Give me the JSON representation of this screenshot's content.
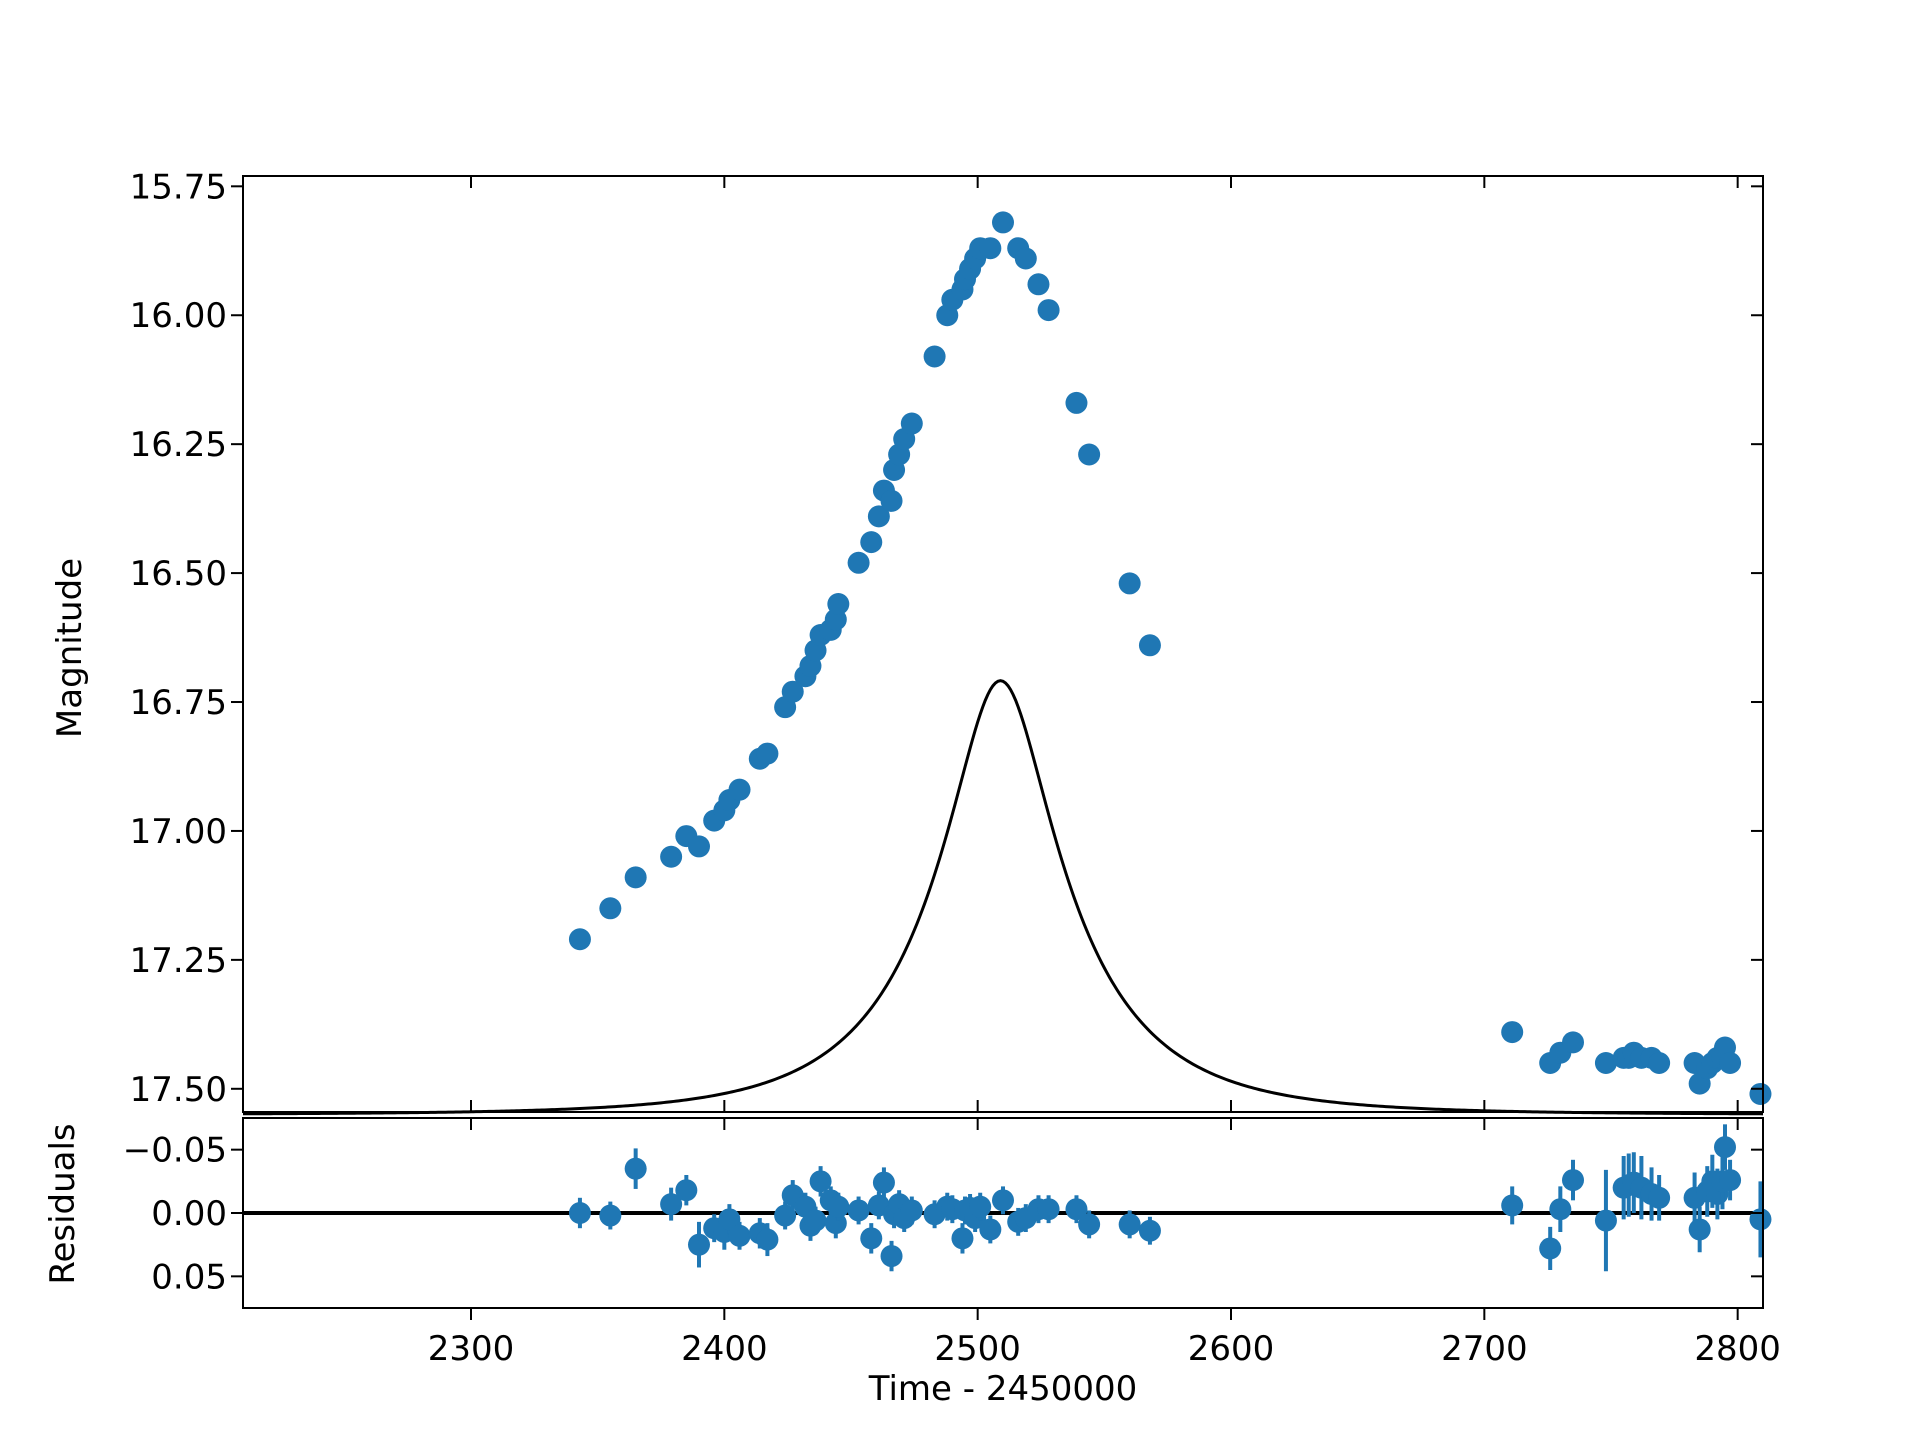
{
  "colors": {
    "points": "#1f77b4",
    "model": "#000000",
    "axes": "#000000",
    "background": "#ffffff"
  },
  "chart_data": [
    {
      "type": "scatter",
      "panel": "main",
      "title": "",
      "xlabel": "",
      "ylabel": "Magnitude",
      "xlim": [
        2210,
        2810
      ],
      "ylim": [
        17.545,
        15.73
      ],
      "y_inverted": true,
      "x_ticks": [
        2300,
        2400,
        2500,
        2600,
        2700,
        2800
      ],
      "y_ticks": [
        "15.75",
        "16.00",
        "16.25",
        "16.50",
        "16.75",
        "17.00",
        "17.25",
        "17.50"
      ],
      "x_tick_labels_shown": false,
      "grid": false,
      "model_curve": {
        "type": "point-lens microlensing fit",
        "t0": 2509,
        "tE": 60,
        "u0": 0.31,
        "baseline_mag": 17.55,
        "blending_fraction": 0.5
      },
      "series": [
        {
          "x": [
            2343,
            2355,
            2365,
            2379,
            2385,
            2390,
            2396,
            2400,
            2402,
            2406,
            2414,
            2417,
            2424,
            2427,
            2432,
            2434,
            2436,
            2438,
            2442,
            2444,
            2445,
            2453,
            2458,
            2461,
            2463,
            2466,
            2467,
            2469,
            2471,
            2474,
            2483,
            2488,
            2490,
            2494,
            2495,
            2497,
            2499,
            2501,
            2505,
            2510,
            2516,
            2519,
            2524,
            2528,
            2539,
            2544,
            2560,
            2568,
            2711,
            2726,
            2730,
            2735,
            2748,
            2755,
            2757,
            2759,
            2762,
            2766,
            2769,
            2783,
            2785,
            2788,
            2790,
            2792,
            2794,
            2795,
            2797,
            2809
          ],
          "y": [
            17.21,
            17.15,
            17.09,
            17.05,
            17.01,
            17.03,
            16.98,
            16.96,
            16.94,
            16.92,
            16.86,
            16.85,
            16.76,
            16.73,
            16.7,
            16.68,
            16.65,
            16.62,
            16.61,
            16.59,
            16.56,
            16.48,
            16.44,
            16.39,
            16.34,
            16.36,
            16.3,
            16.27,
            16.24,
            16.21,
            16.08,
            16.0,
            15.97,
            15.95,
            15.93,
            15.91,
            15.89,
            15.87,
            15.87,
            15.82,
            15.87,
            15.89,
            15.94,
            15.99,
            16.17,
            16.27,
            16.52,
            16.64,
            17.39,
            17.45,
            17.43,
            17.41,
            17.45,
            17.44,
            17.44,
            17.43,
            17.44,
            17.44,
            17.45,
            17.45,
            17.49,
            17.46,
            17.45,
            17.44,
            17.44,
            17.42,
            17.45,
            17.51
          ]
        }
      ]
    },
    {
      "type": "scatter",
      "panel": "residuals",
      "xlabel": "Time - 2450000",
      "ylabel": "Residuals",
      "xlim": [
        2210,
        2810
      ],
      "ylim": [
        0.075,
        -0.075
      ],
      "y_inverted": true,
      "x_ticks": [
        "2300",
        "2400",
        "2500",
        "2600",
        "2700",
        "2800"
      ],
      "y_ticks": [
        "−0.05",
        "0.00",
        "0.05"
      ],
      "zero_line": 0,
      "grid": false,
      "series": [
        {
          "x": [
            2343,
            2355,
            2365,
            2379,
            2385,
            2390,
            2396,
            2400,
            2402,
            2406,
            2414,
            2417,
            2424,
            2427,
            2432,
            2434,
            2436,
            2438,
            2442,
            2444,
            2445,
            2453,
            2458,
            2461,
            2463,
            2466,
            2467,
            2469,
            2471,
            2474,
            2483,
            2488,
            2490,
            2494,
            2495,
            2497,
            2499,
            2501,
            2505,
            2510,
            2516,
            2519,
            2524,
            2528,
            2539,
            2544,
            2560,
            2568,
            2711,
            2726,
            2730,
            2735,
            2748,
            2755,
            2757,
            2759,
            2762,
            2766,
            2769,
            2783,
            2785,
            2788,
            2790,
            2792,
            2794,
            2795,
            2797,
            2809
          ],
          "y": [
            0.0,
            0.002,
            -0.035,
            -0.007,
            -0.018,
            0.025,
            0.012,
            0.015,
            0.005,
            0.018,
            0.016,
            0.021,
            0.002,
            -0.014,
            -0.005,
            0.01,
            0.006,
            -0.025,
            -0.01,
            0.008,
            -0.005,
            -0.002,
            0.02,
            -0.006,
            -0.024,
            0.034,
            0.001,
            -0.007,
            0.004,
            -0.002,
            0.001,
            -0.005,
            -0.003,
            0.02,
            -0.002,
            -0.004,
            0.004,
            -0.005,
            0.013,
            -0.01,
            0.007,
            0.004,
            -0.003,
            -0.003,
            -0.003,
            0.009,
            0.009,
            0.014,
            -0.006,
            0.028,
            -0.003,
            -0.026,
            0.006,
            -0.02,
            -0.022,
            -0.024,
            -0.02,
            -0.015,
            -0.012,
            -0.012,
            0.013,
            -0.017,
            -0.025,
            -0.015,
            -0.025,
            -0.052,
            -0.026,
            0.005
          ],
          "yerr": [
            0.012,
            0.011,
            0.016,
            0.013,
            0.012,
            0.018,
            0.011,
            0.014,
            0.012,
            0.011,
            0.012,
            0.013,
            0.011,
            0.012,
            0.011,
            0.012,
            0.011,
            0.012,
            0.011,
            0.012,
            0.011,
            0.011,
            0.012,
            0.011,
            0.012,
            0.012,
            0.011,
            0.011,
            0.011,
            0.011,
            0.011,
            0.011,
            0.011,
            0.012,
            0.011,
            0.011,
            0.011,
            0.011,
            0.011,
            0.011,
            0.011,
            0.011,
            0.011,
            0.011,
            0.011,
            0.011,
            0.011,
            0.011,
            0.015,
            0.017,
            0.018,
            0.016,
            0.04,
            0.025,
            0.025,
            0.024,
            0.025,
            0.021,
            0.018,
            0.02,
            0.018,
            0.02,
            0.021,
            0.02,
            0.022,
            0.018,
            0.016,
            0.03
          ]
        }
      ]
    }
  ]
}
